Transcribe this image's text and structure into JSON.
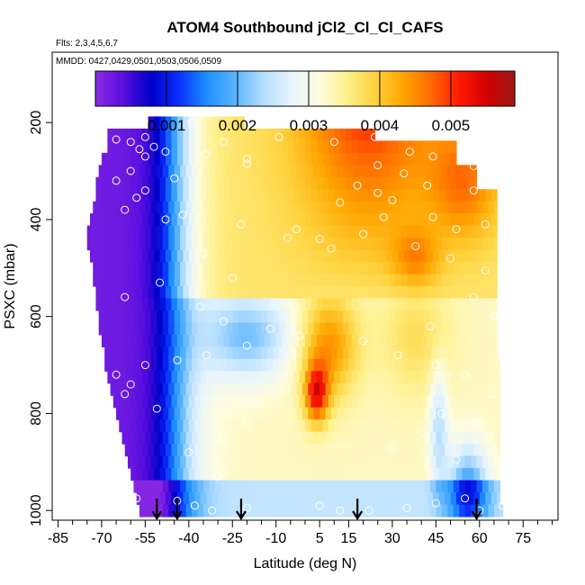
{
  "chart_data": {
    "type": "heatmap",
    "title": "ATOM4 Southbound jCl2_Cl_Cl_CAFS",
    "flights_label": "Flts: 2,3,4,5,6,7",
    "dates_label": "MMDD: 0427,0429,0501,0503,0506,0509",
    "xlabel": "Latitude (deg N)",
    "ylabel": "PSXC (mbar)",
    "xlim": [
      -87,
      87
    ],
    "ylim": [
      1020,
      55
    ],
    "x_ticks_labeled": [
      -85,
      -70,
      -55,
      -40,
      -25,
      -10,
      5,
      15,
      30,
      45,
      60,
      75
    ],
    "x_ticks_minor": [
      -80,
      -75,
      -65,
      -60,
      -50,
      -45,
      -35,
      -30,
      -20,
      -15,
      -5,
      0,
      10,
      20,
      25,
      35,
      40,
      50,
      55,
      65,
      70,
      80,
      85
    ],
    "y_ticks": [
      200,
      400,
      600,
      800,
      1000
    ],
    "colorbar": {
      "min": 0,
      "max": 0.0059,
      "tick_values": [
        0.001,
        0.002,
        0.003,
        0.004,
        0.005
      ],
      "tick_labels": [
        "0.001",
        "0.002",
        "0.003",
        "0.004",
        "0.005"
      ],
      "colors": [
        "#8a2be2",
        "#5a0ee0",
        "#0000c8",
        "#0a30ff",
        "#1e90ff",
        "#5ab4ff",
        "#b4deff",
        "#e6f4ff",
        "#fffde0",
        "#fff08c",
        "#ffd23c",
        "#ffa500",
        "#ff6a00",
        "#ff1a00",
        "#d20000",
        "#9e1a1a"
      ]
    },
    "pressure_bins": [
      {
        "p": 200,
        "lat_min": -54,
        "lat_max": -21
      },
      {
        "p": 225,
        "lat_min": -68,
        "lat_max": 24
      },
      {
        "p": 250,
        "lat_min": -68,
        "lat_max": 52
      },
      {
        "p": 275,
        "lat_min": -70,
        "lat_max": 52
      },
      {
        "p": 300,
        "lat_min": -71,
        "lat_max": 59
      },
      {
        "p": 325,
        "lat_min": -72,
        "lat_max": 59
      },
      {
        "p": 350,
        "lat_min": -72,
        "lat_max": 66
      },
      {
        "p": 375,
        "lat_min": -73,
        "lat_max": 66
      },
      {
        "p": 400,
        "lat_min": -74,
        "lat_max": 66
      },
      {
        "p": 425,
        "lat_min": -75,
        "lat_max": 66
      },
      {
        "p": 450,
        "lat_min": -75,
        "lat_max": 66
      },
      {
        "p": 475,
        "lat_min": -74,
        "lat_max": 66
      },
      {
        "p": 500,
        "lat_min": -73,
        "lat_max": 66
      },
      {
        "p": 525,
        "lat_min": -73,
        "lat_max": 66
      },
      {
        "p": 550,
        "lat_min": -72,
        "lat_max": 66
      },
      {
        "p": 575,
        "lat_min": -72,
        "lat_max": 66
      },
      {
        "p": 600,
        "lat_min": -71,
        "lat_max": 66
      },
      {
        "p": 625,
        "lat_min": -71,
        "lat_max": 66
      },
      {
        "p": 650,
        "lat_min": -70,
        "lat_max": 66
      },
      {
        "p": 675,
        "lat_min": -69,
        "lat_max": 66
      },
      {
        "p": 700,
        "lat_min": -69,
        "lat_max": 67
      },
      {
        "p": 725,
        "lat_min": -68,
        "lat_max": 67
      },
      {
        "p": 750,
        "lat_min": -67,
        "lat_max": 67
      },
      {
        "p": 775,
        "lat_min": -66,
        "lat_max": 67
      },
      {
        "p": 800,
        "lat_min": -65,
        "lat_max": 67
      },
      {
        "p": 825,
        "lat_min": -64,
        "lat_max": 67
      },
      {
        "p": 850,
        "lat_min": -63,
        "lat_max": 67
      },
      {
        "p": 875,
        "lat_min": -62,
        "lat_max": 67
      },
      {
        "p": 900,
        "lat_min": -61,
        "lat_max": 67
      },
      {
        "p": 925,
        "lat_min": -60,
        "lat_max": 67
      },
      {
        "p": 950,
        "lat_min": -59,
        "lat_max": 67
      },
      {
        "p": 975,
        "lat_min": -58,
        "lat_max": 67
      },
      {
        "p": 1000,
        "lat_min": -57,
        "lat_max": 68
      }
    ],
    "profile_arrows_lat": [
      -51,
      -44,
      -22,
      18,
      59
    ],
    "observation_points": [
      [
        -39,
        200
      ],
      [
        -55,
        230
      ],
      [
        -9,
        230
      ],
      [
        -65,
        235
      ],
      [
        -60,
        240
      ],
      [
        -28,
        240
      ],
      [
        -74,
        250
      ],
      [
        -57,
        255
      ],
      [
        -48,
        260
      ],
      [
        -34,
        265
      ],
      [
        -20,
        275
      ],
      [
        -55,
        270
      ],
      [
        -20,
        285
      ],
      [
        -52,
        250
      ],
      [
        -60,
        300
      ],
      [
        -45,
        315
      ],
      [
        -65,
        320
      ],
      [
        -55,
        340
      ],
      [
        -58,
        355
      ],
      [
        -62,
        380
      ],
      [
        -42,
        390
      ],
      [
        -48,
        400
      ],
      [
        -22,
        410
      ],
      [
        -3,
        420
      ],
      [
        -6,
        438
      ],
      [
        5,
        440
      ],
      [
        9,
        460
      ],
      [
        -35,
        470
      ],
      [
        -25,
        520
      ],
      [
        -50,
        530
      ],
      [
        -62,
        560
      ],
      [
        -36,
        580
      ],
      [
        -28,
        610
      ],
      [
        -12,
        625
      ],
      [
        -2,
        640
      ],
      [
        -20,
        660
      ],
      [
        -34,
        680
      ],
      [
        -44,
        690
      ],
      [
        -55,
        700
      ],
      [
        -65,
        720
      ],
      [
        -60,
        740
      ],
      [
        -70,
        740
      ],
      [
        -62,
        760
      ],
      [
        -51,
        790
      ],
      [
        -20,
        820
      ],
      [
        -30,
        850
      ],
      [
        -40,
        880
      ],
      [
        -30,
        930
      ],
      [
        -63,
        960
      ],
      [
        -67,
        970
      ],
      [
        -58,
        975
      ],
      [
        -44,
        980
      ],
      [
        -38,
        990
      ],
      [
        -32,
        1000
      ],
      [
        -20,
        995
      ],
      [
        5,
        990
      ],
      [
        12,
        1000
      ],
      [
        22,
        1000
      ],
      [
        35,
        995
      ],
      [
        45,
        985
      ],
      [
        55,
        975
      ],
      [
        60,
        1000
      ],
      [
        68,
        990
      ],
      [
        24,
        230
      ],
      [
        36,
        260
      ],
      [
        44,
        270
      ],
      [
        25,
        288
      ],
      [
        34,
        305
      ],
      [
        42,
        330
      ],
      [
        58,
        340
      ],
      [
        30,
        360
      ],
      [
        44,
        395
      ],
      [
        52,
        420
      ],
      [
        20,
        430
      ],
      [
        38,
        455
      ],
      [
        50,
        480
      ],
      [
        62,
        505
      ],
      [
        58,
        560
      ],
      [
        65,
        600
      ],
      [
        43,
        620
      ],
      [
        20,
        650
      ],
      [
        32,
        680
      ],
      [
        45,
        700
      ],
      [
        55,
        720
      ],
      [
        64,
        760
      ],
      [
        47,
        800
      ],
      [
        59,
        820
      ],
      [
        40,
        840
      ],
      [
        30,
        870
      ],
      [
        52,
        895
      ],
      [
        18,
        330
      ],
      [
        25,
        345
      ],
      [
        12,
        365
      ],
      [
        27,
        395
      ],
      [
        62,
        410
      ],
      [
        66,
        600
      ],
      [
        68,
        710
      ],
      [
        10,
        240
      ],
      [
        58,
        290
      ]
    ],
    "legend": "none",
    "grid": false
  }
}
